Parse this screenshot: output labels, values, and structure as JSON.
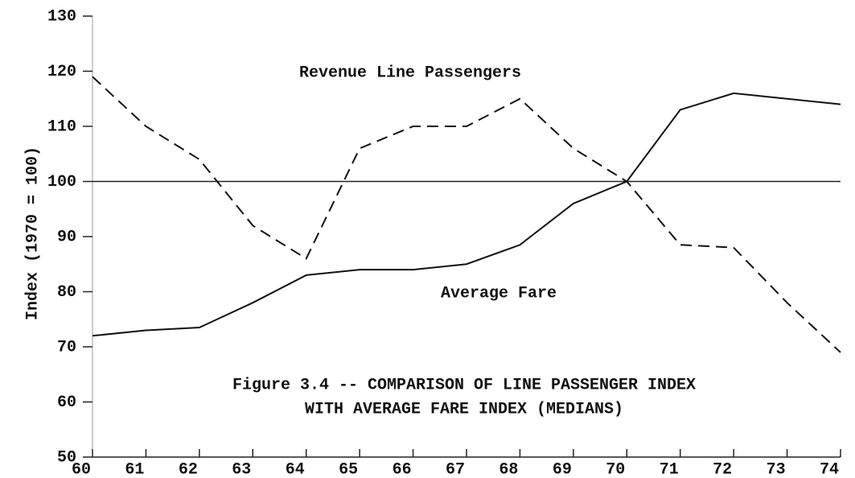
{
  "chart_data": {
    "type": "line",
    "title": [
      "Figure 3.4 -- COMPARISON OF LINE PASSENGER INDEX",
      "WITH AVERAGE FARE INDEX (MEDIANS)"
    ],
    "y_label": "Index (1970 = 100)",
    "x": [
      60,
      61,
      62,
      63,
      64,
      65,
      66,
      67,
      68,
      69,
      70,
      71,
      72,
      73,
      74
    ],
    "xlim": [
      60,
      74
    ],
    "xticks": [
      60,
      61,
      62,
      63,
      64,
      65,
      66,
      67,
      68,
      69,
      70,
      71,
      72,
      73,
      74
    ],
    "ylim": [
      50,
      130
    ],
    "yticks": [
      50,
      60,
      70,
      80,
      90,
      100,
      110,
      120,
      130
    ],
    "reference_line": 100,
    "series": [
      {
        "name": "Revenue Line Passengers",
        "color": "#111111",
        "dashed": true,
        "values": [
          119,
          110,
          104,
          92,
          86,
          106,
          110,
          110,
          115,
          106,
          100,
          88.5,
          88,
          78,
          69
        ]
      },
      {
        "name": "Average Fare",
        "color": "#111111",
        "dashed": false,
        "values": [
          72,
          73,
          73.5,
          78,
          83,
          84,
          84,
          85,
          88.5,
          96,
          100,
          113,
          116,
          115,
          114
        ]
      }
    ]
  }
}
